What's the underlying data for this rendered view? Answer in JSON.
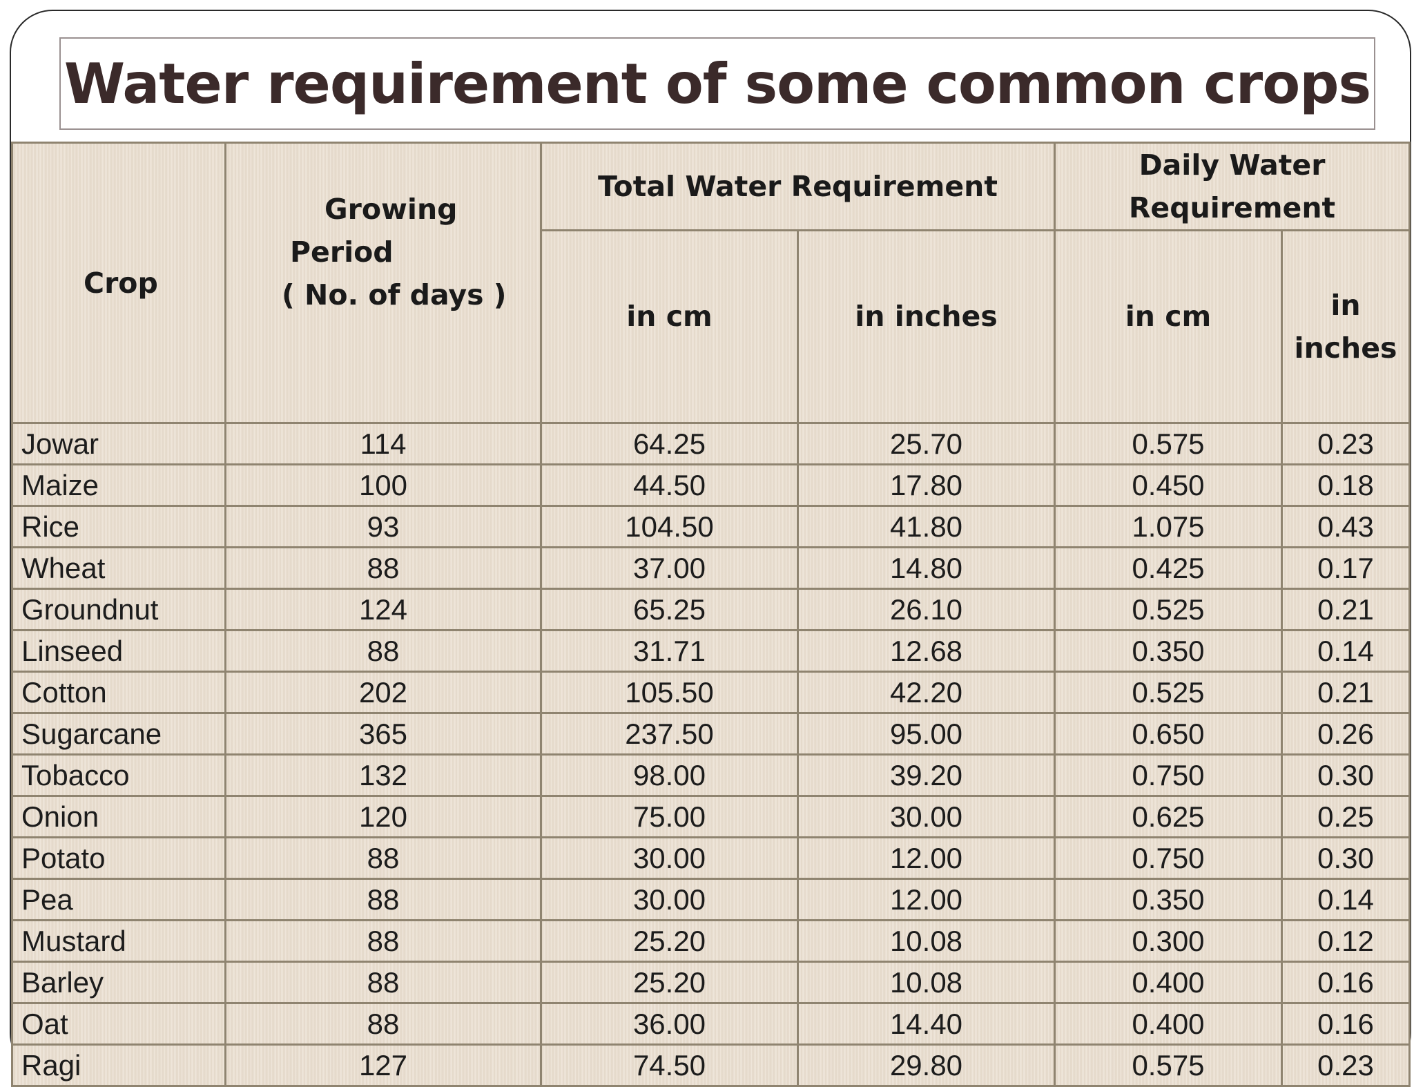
{
  "title": "Water requirement of some common crops",
  "headers": {
    "crop": "Crop",
    "growing_period": [
      "Growing",
      "Period",
      "( No. of days )"
    ],
    "total_water": "Total Water Requirement",
    "daily_water": [
      "Daily Water",
      "Requirement"
    ],
    "in_cm": "in cm",
    "in_inches": "in inches",
    "daily_in_cm": "in cm",
    "daily_in_inches": [
      "in",
      "inches"
    ]
  },
  "rows": [
    [
      "Jowar",
      "114",
      "64.25",
      "25.70",
      "0.575",
      "0.23"
    ],
    [
      "Maize",
      "100",
      "44.50",
      "17.80",
      "0.450",
      "0.18"
    ],
    [
      "Rice",
      "93",
      "104.50",
      "41.80",
      "1.075",
      "0.43"
    ],
    [
      "Wheat",
      "88",
      "37.00",
      "14.80",
      "0.425",
      "0.17"
    ],
    [
      "Groundnut",
      "124",
      "65.25",
      "26.10",
      "0.525",
      "0.21"
    ],
    [
      "Linseed",
      "88",
      "31.71",
      "12.68",
      "0.350",
      "0.14"
    ],
    [
      "Cotton",
      "202",
      "105.50",
      "42.20",
      "0.525",
      "0.21"
    ],
    [
      "Sugarcane",
      "365",
      "237.50",
      "95.00",
      "0.650",
      "0.26"
    ],
    [
      "Tobacco",
      "132",
      "98.00",
      "39.20",
      "0.750",
      "0.30"
    ],
    [
      "Onion",
      "120",
      "75.00",
      "30.00",
      "0.625",
      "0.25"
    ],
    [
      "Potato",
      "88",
      "30.00",
      "12.00",
      "0.750",
      "0.30"
    ],
    [
      "Pea",
      "88",
      "30.00",
      "12.00",
      "0.350",
      "0.14"
    ],
    [
      "Mustard",
      "88",
      "25.20",
      "10.08",
      "0.300",
      "0.12"
    ],
    [
      "Barley",
      "88",
      "25.20",
      "10.08",
      "0.400",
      "0.16"
    ],
    [
      "Oat",
      "88",
      "36.00",
      "14.40",
      "0.400",
      "0.16"
    ],
    [
      "Ragi",
      "127",
      "74.50",
      "29.80",
      "0.575",
      "0.23"
    ]
  ]
}
